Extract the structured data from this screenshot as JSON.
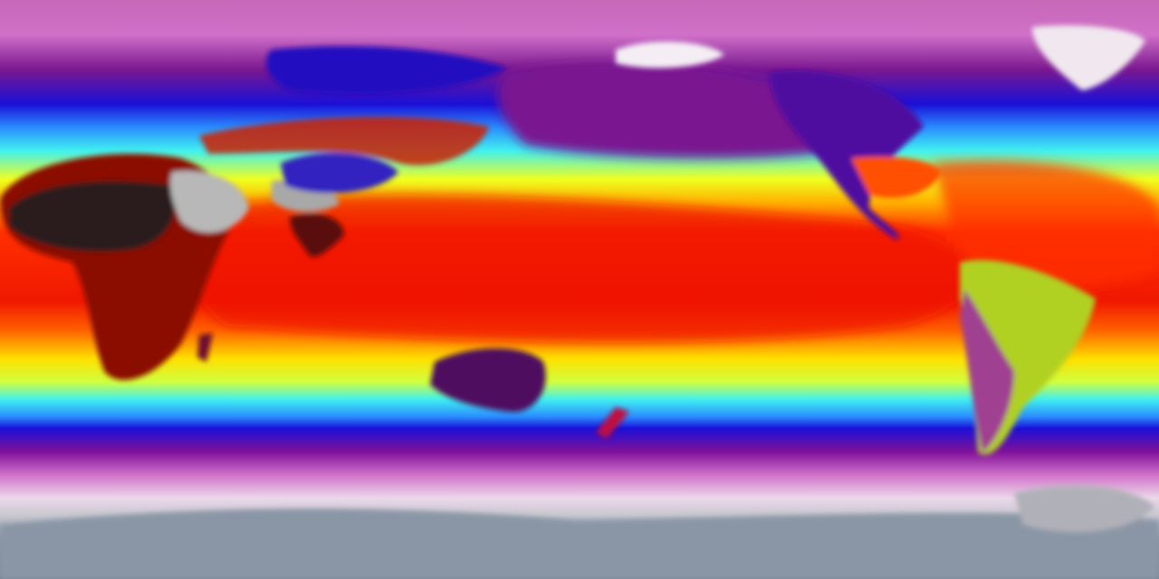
{
  "map": {
    "projection": "equirectangular",
    "colorscale": [
      "#8a96a6",
      "#e8e8ee",
      "#d070c8",
      "#90169a",
      "#1a10d8",
      "#2a8cff",
      "#40f0f0",
      "#f0ff20",
      "#ffb000",
      "#ff3000",
      "#e00000",
      "#200808",
      "#c8c8c8"
    ],
    "land_colors": {
      "sahara": "#2a1a1a",
      "desert_hot": "#b8b8b8",
      "australia": "#501060",
      "greenland": "#f0e8ee",
      "antarctica": "#8a96a6",
      "andes": "#a04090",
      "tibet": "#3020c0"
    }
  }
}
